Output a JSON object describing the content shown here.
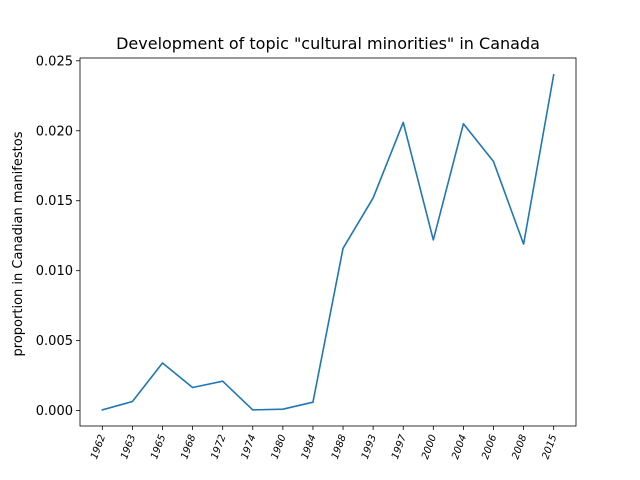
{
  "chart_data": {
    "type": "line",
    "title": "Development of topic \"cultural minorities\" in Canada",
    "xlabel": "",
    "ylabel": "proportion in Canadian manifestos",
    "categories": [
      "1962",
      "1963",
      "1965",
      "1968",
      "1972",
      "1974",
      "1980",
      "1984",
      "1988",
      "1993",
      "1997",
      "2000",
      "2004",
      "2006",
      "2008",
      "2015"
    ],
    "series": [
      {
        "color": "#1f77b4",
        "values": [
          5e-05,
          0.00065,
          0.0034,
          0.00165,
          0.0021,
          5e-05,
          0.0001,
          0.0006,
          0.0116,
          0.0152,
          0.0206,
          0.0122,
          0.0205,
          0.0178,
          0.0119,
          0.024
        ]
      }
    ],
    "ylim": [
      -0.0011,
      0.0252
    ],
    "yticks": [
      "0.000",
      "0.005",
      "0.010",
      "0.015",
      "0.020",
      "0.025"
    ],
    "ytick_values": [
      0.0,
      0.005,
      0.01,
      0.015,
      0.02,
      0.025
    ],
    "grid": false,
    "legend": "none"
  }
}
